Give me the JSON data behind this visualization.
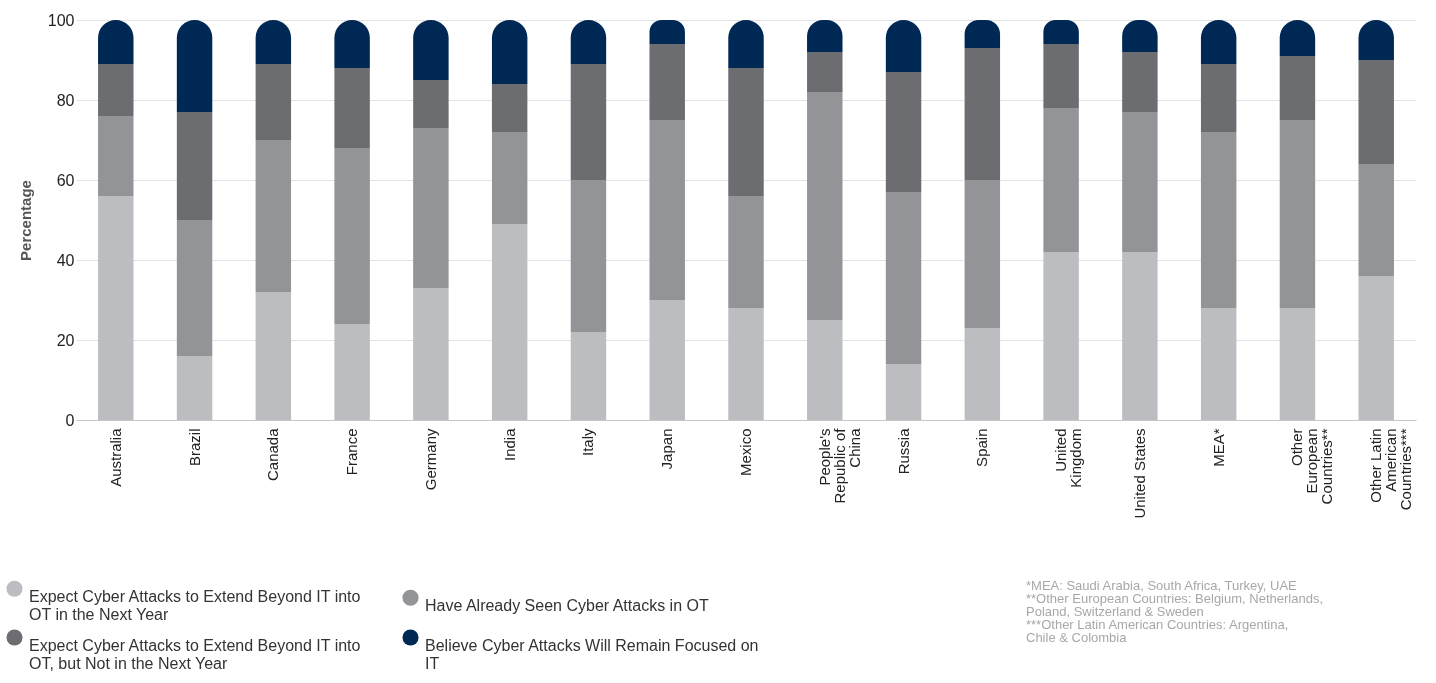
{
  "chart_data": {
    "type": "bar",
    "stacked": true,
    "ylabel": "Percentage",
    "categories": [
      "Australia",
      "Brazil",
      "Canada",
      "France",
      "Germany",
      "India",
      "Italy",
      "Japan",
      "Mexico",
      "People's Republic of China",
      "Russia",
      "Spain",
      "United Kingdom",
      "United States",
      "MEA*",
      "Other European Countries**",
      "Other Latin American Countries***"
    ],
    "series": [
      {
        "name": "Expect Cyber Attacks to Extend Beyond IT into OT in the Next Year",
        "color": "#bcbdc0",
        "values": [
          56,
          16,
          32,
          24,
          33,
          49,
          22,
          30,
          28,
          25,
          14,
          23,
          42,
          42,
          28,
          28,
          36
        ]
      },
      {
        "name": "Have Already Seen Cyber Attacks in OT",
        "color": "#939497",
        "values": [
          20,
          34,
          38,
          44,
          40,
          23,
          38,
          45,
          28,
          57,
          43,
          37,
          36,
          35,
          44,
          47,
          28
        ]
      },
      {
        "name": "Expect Cyber Attacks to Extend Beyond IT into OT, but Not in the Next Year",
        "color": "#6c6d71",
        "values": [
          13,
          27,
          19,
          20,
          12,
          12,
          29,
          19,
          32,
          10,
          30,
          33,
          16,
          15,
          17,
          16,
          26
        ]
      },
      {
        "name": "Believe Cyber Attacks Will Remain Focused on IT",
        "color": "#002855",
        "values": [
          11,
          23,
          11,
          12,
          15,
          16,
          11,
          6,
          12,
          8,
          13,
          7,
          6,
          8,
          11,
          9,
          10
        ]
      }
    ],
    "ylim": [
      0,
      100
    ],
    "yticks": [
      0,
      20,
      40,
      60,
      80,
      100
    ],
    "grid": "y",
    "legend": "bottom left",
    "annotations": [
      "*MEA: Saudi Arabia, South Africa, Turkey, UAE",
      "**Other European Countries: Belgium, Netherlands, Poland, Switzerland & Sweden",
      "***Other Latin American Countries: Argentina, Chile & Colombia"
    ]
  }
}
